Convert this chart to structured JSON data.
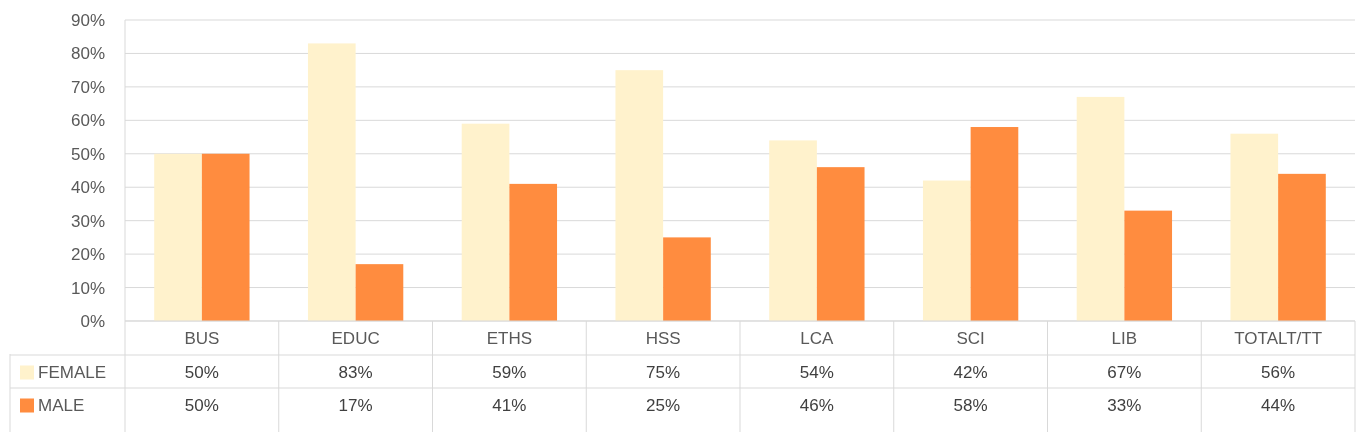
{
  "chart_data": {
    "type": "bar",
    "categories": [
      "BUS",
      "EDUC",
      "ETHS",
      "HSS",
      "LCA",
      "SCI",
      "LIB",
      "TOTALT/TT"
    ],
    "series": [
      {
        "name": "FEMALE",
        "color": "#fff2cc",
        "values": [
          50,
          83,
          59,
          75,
          54,
          42,
          67,
          56
        ],
        "value_labels": [
          "50%",
          "83%",
          "59%",
          "75%",
          "54%",
          "42%",
          "67%",
          "56%"
        ]
      },
      {
        "name": "MALE",
        "color": "#ff8c3f",
        "values": [
          50,
          17,
          41,
          25,
          46,
          58,
          33,
          44
        ],
        "value_labels": [
          "50%",
          "17%",
          "41%",
          "25%",
          "46%",
          "58%",
          "33%",
          "44%"
        ]
      }
    ],
    "ylim": [
      0,
      90
    ],
    "yticks": [
      {
        "value": 0,
        "label": "0%"
      },
      {
        "value": 10,
        "label": "10%"
      },
      {
        "value": 20,
        "label": "20%"
      },
      {
        "value": 30,
        "label": "30%"
      },
      {
        "value": 40,
        "label": "40%"
      },
      {
        "value": 50,
        "label": "50%"
      },
      {
        "value": 60,
        "label": "60%"
      },
      {
        "value": 70,
        "label": "70%"
      },
      {
        "value": 80,
        "label": "80%"
      },
      {
        "value": 90,
        "label": "90%"
      }
    ],
    "grid": "y",
    "legend": "bottom left"
  }
}
